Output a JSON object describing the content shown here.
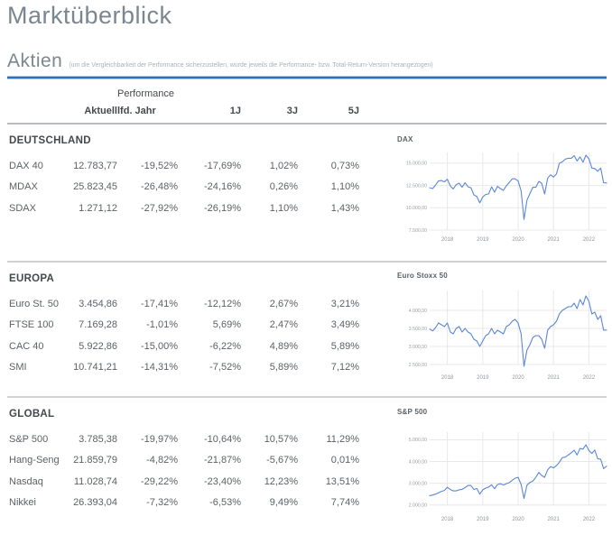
{
  "page": {
    "title": "Marktüberblick",
    "section_title": "Aktien",
    "section_note": "(um die Vergleichbarkeit der Performance sicherzustellen, wurde jeweils die Performance- bzw. Total-Return-Version herangezogen)"
  },
  "colors": {
    "accent_blue": "#2f6fb3",
    "chart_line": "#5b87d5",
    "gridline": "#e8e8e8",
    "divider_gray": "#b9bcbf",
    "heading_gray": "#7b8790"
  },
  "table": {
    "perf_group_label": "Performance",
    "columns": [
      "",
      "Aktuell",
      "lfd. Jahr",
      "1J",
      "3J",
      "5J"
    ],
    "sections": [
      {
        "heading": "DEUTSCHLAND",
        "rows": [
          {
            "name": "DAX 40",
            "values": [
              "12.783,77",
              "-19,52%",
              "-17,69%",
              "1,02%",
              "0,73%"
            ]
          },
          {
            "name": "MDAX",
            "values": [
              "25.823,45",
              "-26,48%",
              "-24,16%",
              "0,26%",
              "1,10%"
            ]
          },
          {
            "name": "SDAX",
            "values": [
              "1.271,12",
              "-27,92%",
              "-26,19%",
              "1,10%",
              "1,43%"
            ]
          }
        ]
      },
      {
        "heading": "EUROPA",
        "rows": [
          {
            "name": "Euro St. 50",
            "values": [
              "3.454,86",
              "-17,41%",
              "-12,12%",
              "2,67%",
              "3,21%"
            ]
          },
          {
            "name": "FTSE 100",
            "values": [
              "7.169,28",
              "-1,01%",
              "5,69%",
              "2,47%",
              "3,49%"
            ]
          },
          {
            "name": "CAC 40",
            "values": [
              "5.922,86",
              "-15,00%",
              "-6,22%",
              "4,89%",
              "5,89%"
            ]
          },
          {
            "name": "SMI",
            "values": [
              "10.741,21",
              "-14,31%",
              "-7,52%",
              "5,89%",
              "7,12%"
            ]
          }
        ]
      },
      {
        "heading": "GLOBAL",
        "rows": [
          {
            "name": "S&P 500",
            "values": [
              "3.785,38",
              "-19,97%",
              "-10,64%",
              "10,57%",
              "11,29%"
            ]
          },
          {
            "name": "Hang-Seng",
            "values": [
              "21.859,79",
              "-4,82%",
              "-21,87%",
              "-5,67%",
              "0,01%"
            ]
          },
          {
            "name": "Nasdaq",
            "values": [
              "11.028,74",
              "-29,22%",
              "-23,40%",
              "12,23%",
              "13,51%"
            ]
          },
          {
            "name": "Nikkei",
            "values": [
              "26.393,04",
              "-7,32%",
              "-6,53%",
              "9,49%",
              "7,74%"
            ]
          }
        ]
      }
    ]
  },
  "chart_data": [
    {
      "type": "line",
      "title": "DAX",
      "x_ticks": [
        "2018",
        "2019",
        "2020",
        "2021",
        "2022"
      ],
      "xlim_years": [
        2017.5,
        2022.5
      ],
      "y_ticks": [
        7500,
        10000,
        12500,
        15000
      ],
      "y_tick_labels": [
        "7.500,00",
        "10.000,00",
        "12.500,00",
        "15.000,00"
      ],
      "ylim": [
        7300,
        16200
      ],
      "grid": true,
      "values": [
        12250,
        12150,
        12550,
        13000,
        13050,
        12900,
        13200,
        12450,
        12100,
        12600,
        12750,
        12300,
        12800,
        12350,
        12250,
        11450,
        11250,
        10550,
        11200,
        11500,
        11550,
        12350,
        11750,
        12400,
        12150,
        11950,
        12450,
        12850,
        13250,
        13250,
        13000,
        11900,
        8700,
        10850,
        11600,
        12300,
        12300,
        12950,
        12750,
        11550,
        13300,
        13700,
        13450,
        13800,
        15000,
        15150,
        15450,
        15550,
        15550,
        15850,
        15250,
        15700,
        15100,
        15900,
        15500,
        14450,
        14400,
        14100,
        14450,
        12800,
        12784
      ]
    },
    {
      "type": "line",
      "title": "Euro Stoxx 50",
      "x_ticks": [
        "2018",
        "2019",
        "2020",
        "2021",
        "2022"
      ],
      "xlim_years": [
        2017.5,
        2022.5
      ],
      "y_ticks": [
        2500,
        3000,
        3500,
        4000
      ],
      "y_tick_labels": [
        "2.500,00",
        "3.000,00",
        "3.500,00",
        "4.000,00"
      ],
      "ylim": [
        2350,
        4550
      ],
      "grid": true,
      "values": [
        3480,
        3430,
        3520,
        3650,
        3600,
        3550,
        3650,
        3400,
        3350,
        3500,
        3550,
        3400,
        3500,
        3400,
        3350,
        3200,
        3150,
        3000,
        3150,
        3300,
        3350,
        3500,
        3350,
        3450,
        3400,
        3350,
        3550,
        3600,
        3700,
        3750,
        3650,
        3350,
        2450,
        2900,
        3050,
        3250,
        3300,
        3300,
        3200,
        2950,
        3450,
        3550,
        3600,
        3700,
        3900,
        4000,
        4050,
        4100,
        4100,
        4200,
        4050,
        4300,
        4150,
        4400,
        4250,
        3900,
        3950,
        3750,
        3850,
        3450,
        3455
      ]
    },
    {
      "type": "line",
      "title": "S&P 500",
      "x_ticks": [
        "2018",
        "2019",
        "2020",
        "2021",
        "2022"
      ],
      "xlim_years": [
        2017.5,
        2022.5
      ],
      "y_ticks": [
        2000,
        3000,
        4000,
        5000
      ],
      "y_tick_labels": [
        "2.000,00",
        "3.000,00",
        "4.000,00",
        "5.000,00"
      ],
      "ylim": [
        1700,
        5350
      ],
      "grid": true,
      "values": [
        2430,
        2460,
        2500,
        2560,
        2630,
        2670,
        2820,
        2710,
        2650,
        2650,
        2700,
        2720,
        2800,
        2900,
        2900,
        2710,
        2760,
        2500,
        2700,
        2780,
        2830,
        2930,
        2750,
        2940,
        2980,
        2920,
        2980,
        3030,
        3140,
        3230,
        3270,
        2950,
        2300,
        2910,
        3040,
        3100,
        3270,
        3500,
        3360,
        3270,
        3620,
        3760,
        3710,
        3810,
        3970,
        4180,
        4200,
        4300,
        4400,
        4520,
        4300,
        4600,
        4570,
        4770,
        4510,
        4370,
        4530,
        4130,
        4100,
        3670,
        3785
      ]
    }
  ]
}
